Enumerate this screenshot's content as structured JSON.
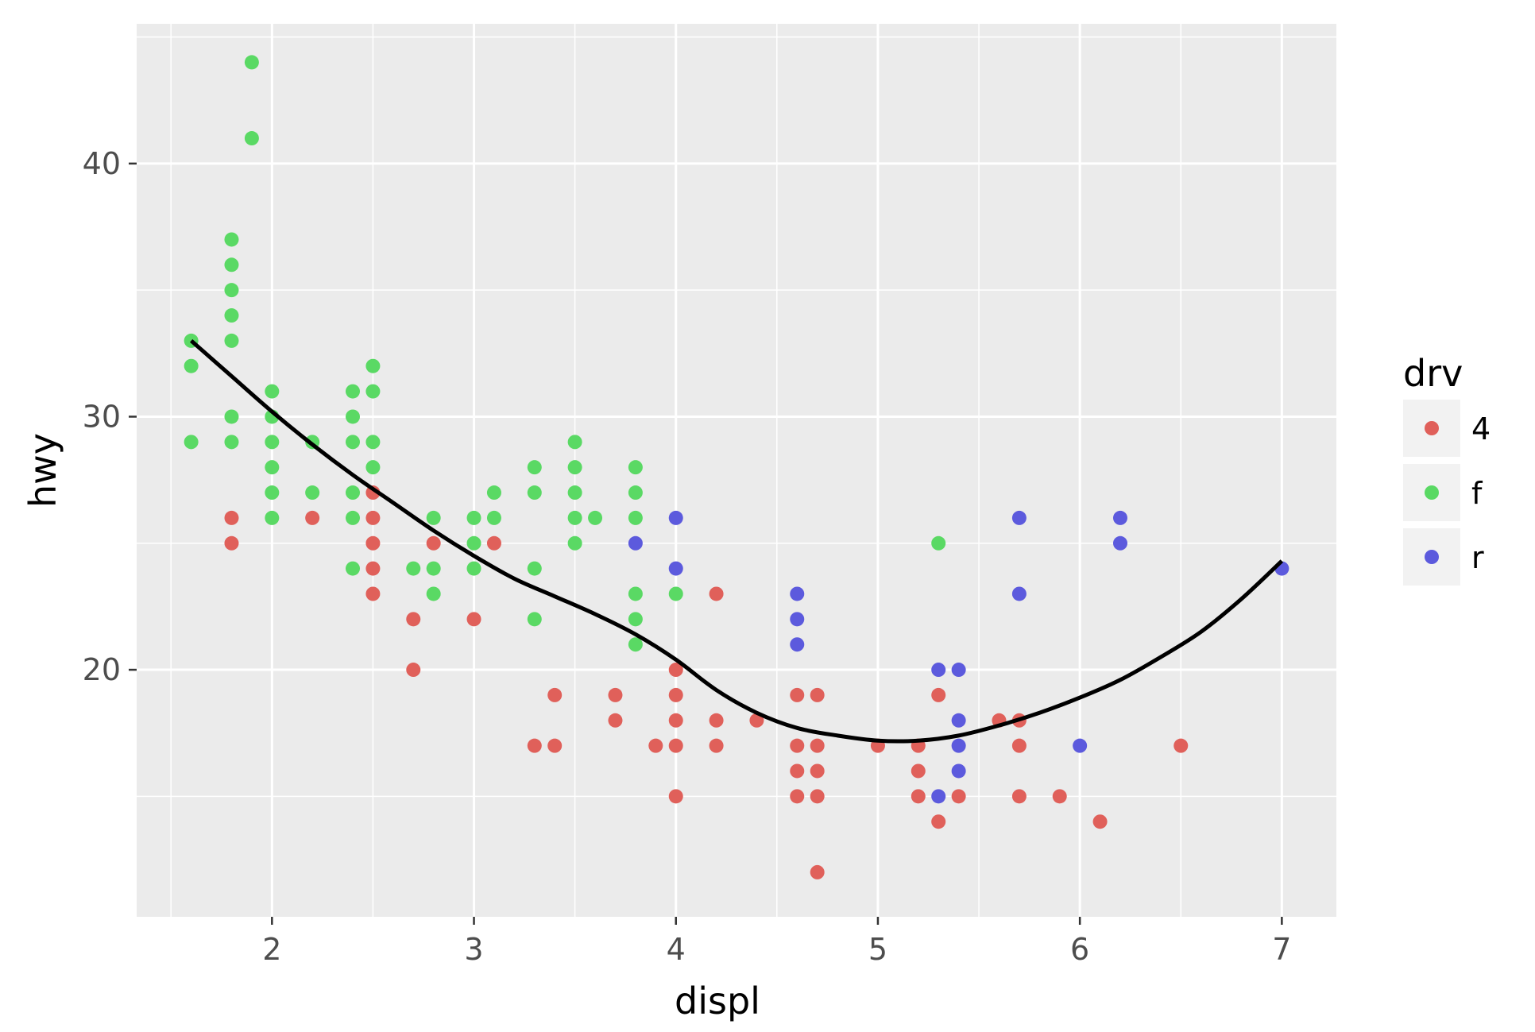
{
  "chart_data": {
    "type": "scatter",
    "xlabel": "displ",
    "ylabel": "hwy",
    "xlim": [
      1.33,
      7.27
    ],
    "ylim": [
      10.24,
      45.52
    ],
    "x_ticks": [
      2,
      3,
      4,
      5,
      6,
      7
    ],
    "y_ticks": [
      20,
      30,
      40
    ],
    "grid": true,
    "legend": {
      "title": "drv",
      "position": "right",
      "entries": [
        {
          "label": "4",
          "color": "#E0605A"
        },
        {
          "label": "f",
          "color": "#5AD964"
        },
        {
          "label": "r",
          "color": "#5C5ADD"
        }
      ]
    },
    "series": [
      {
        "name": "4",
        "color": "#E0605A",
        "points": [
          [
            1.8,
            26
          ],
          [
            1.8,
            25
          ],
          [
            2.2,
            26
          ],
          [
            2.5,
            27
          ],
          [
            2.5,
            26
          ],
          [
            2.5,
            25
          ],
          [
            2.5,
            24
          ],
          [
            2.5,
            23
          ],
          [
            2.7,
            22
          ],
          [
            2.7,
            20
          ],
          [
            2.8,
            25
          ],
          [
            3.0,
            22
          ],
          [
            3.1,
            25
          ],
          [
            3.3,
            17
          ],
          [
            3.4,
            19
          ],
          [
            3.4,
            17
          ],
          [
            3.7,
            19
          ],
          [
            3.7,
            18
          ],
          [
            3.9,
            17
          ],
          [
            4.0,
            20
          ],
          [
            4.0,
            19
          ],
          [
            4.0,
            18
          ],
          [
            4.0,
            17
          ],
          [
            4.0,
            15
          ],
          [
            4.2,
            23
          ],
          [
            4.2,
            18
          ],
          [
            4.2,
            17
          ],
          [
            4.4,
            18
          ],
          [
            4.6,
            19
          ],
          [
            4.6,
            17
          ],
          [
            4.6,
            16
          ],
          [
            4.6,
            15
          ],
          [
            4.7,
            19
          ],
          [
            4.7,
            17
          ],
          [
            4.7,
            16
          ],
          [
            4.7,
            15
          ],
          [
            4.7,
            12
          ],
          [
            5.0,
            17
          ],
          [
            5.2,
            17
          ],
          [
            5.2,
            16
          ],
          [
            5.2,
            15
          ],
          [
            5.3,
            19
          ],
          [
            5.3,
            14
          ],
          [
            5.4,
            15
          ],
          [
            5.6,
            18
          ],
          [
            5.7,
            18
          ],
          [
            5.7,
            17
          ],
          [
            5.7,
            15
          ],
          [
            5.9,
            15
          ],
          [
            6.1,
            14
          ],
          [
            6.5,
            17
          ]
        ]
      },
      {
        "name": "f",
        "color": "#5AD964",
        "points": [
          [
            1.6,
            33
          ],
          [
            1.6,
            32
          ],
          [
            1.6,
            29
          ],
          [
            1.8,
            37
          ],
          [
            1.8,
            36
          ],
          [
            1.8,
            35
          ],
          [
            1.8,
            34
          ],
          [
            1.8,
            33
          ],
          [
            1.8,
            30
          ],
          [
            1.8,
            29
          ],
          [
            1.9,
            44
          ],
          [
            1.9,
            41
          ],
          [
            2.0,
            31
          ],
          [
            2.0,
            30
          ],
          [
            2.0,
            29
          ],
          [
            2.0,
            28
          ],
          [
            2.0,
            27
          ],
          [
            2.0,
            26
          ],
          [
            2.2,
            29
          ],
          [
            2.2,
            27
          ],
          [
            2.4,
            31
          ],
          [
            2.4,
            30
          ],
          [
            2.4,
            29
          ],
          [
            2.4,
            27
          ],
          [
            2.4,
            26
          ],
          [
            2.4,
            24
          ],
          [
            2.5,
            32
          ],
          [
            2.5,
            31
          ],
          [
            2.5,
            29
          ],
          [
            2.5,
            28
          ],
          [
            2.8,
            26
          ],
          [
            2.8,
            24
          ],
          [
            2.8,
            23
          ],
          [
            2.7,
            24
          ],
          [
            3.0,
            26
          ],
          [
            3.0,
            25
          ],
          [
            3.0,
            24
          ],
          [
            3.1,
            27
          ],
          [
            3.1,
            26
          ],
          [
            3.3,
            28
          ],
          [
            3.3,
            27
          ],
          [
            3.3,
            24
          ],
          [
            3.3,
            22
          ],
          [
            3.5,
            29
          ],
          [
            3.5,
            28
          ],
          [
            3.5,
            27
          ],
          [
            3.5,
            26
          ],
          [
            3.5,
            25
          ],
          [
            3.6,
            26
          ],
          [
            3.8,
            28
          ],
          [
            3.8,
            27
          ],
          [
            3.8,
            26
          ],
          [
            3.8,
            23
          ],
          [
            3.8,
            22
          ],
          [
            3.8,
            21
          ],
          [
            4.0,
            23
          ],
          [
            5.3,
            25
          ]
        ]
      },
      {
        "name": "r",
        "color": "#5C5ADD",
        "points": [
          [
            3.8,
            25
          ],
          [
            4.0,
            26
          ],
          [
            4.0,
            24
          ],
          [
            4.6,
            23
          ],
          [
            4.6,
            22
          ],
          [
            4.6,
            21
          ],
          [
            5.3,
            20
          ],
          [
            5.3,
            15
          ],
          [
            5.4,
            20
          ],
          [
            5.4,
            18
          ],
          [
            5.4,
            17
          ],
          [
            5.4,
            16
          ],
          [
            5.7,
            26
          ],
          [
            5.7,
            23
          ],
          [
            6.0,
            17
          ],
          [
            6.2,
            26
          ],
          [
            6.2,
            25
          ],
          [
            7.0,
            24
          ]
        ]
      }
    ],
    "smooth": {
      "color": "#000000",
      "points": [
        [
          1.6,
          33.0
        ],
        [
          1.8,
          31.6
        ],
        [
          2.0,
          30.2
        ],
        [
          2.2,
          28.9
        ],
        [
          2.4,
          27.7
        ],
        [
          2.6,
          26.6
        ],
        [
          2.8,
          25.5
        ],
        [
          3.0,
          24.5
        ],
        [
          3.2,
          23.6
        ],
        [
          3.4,
          22.9
        ],
        [
          3.6,
          22.2
        ],
        [
          3.8,
          21.4
        ],
        [
          4.0,
          20.4
        ],
        [
          4.2,
          19.2
        ],
        [
          4.4,
          18.3
        ],
        [
          4.6,
          17.7
        ],
        [
          4.8,
          17.4
        ],
        [
          5.0,
          17.2
        ],
        [
          5.2,
          17.2
        ],
        [
          5.4,
          17.4
        ],
        [
          5.6,
          17.8
        ],
        [
          5.8,
          18.3
        ],
        [
          6.0,
          18.9
        ],
        [
          6.2,
          19.6
        ],
        [
          6.4,
          20.5
        ],
        [
          6.6,
          21.5
        ],
        [
          6.8,
          22.8
        ],
        [
          7.0,
          24.3
        ]
      ]
    }
  }
}
